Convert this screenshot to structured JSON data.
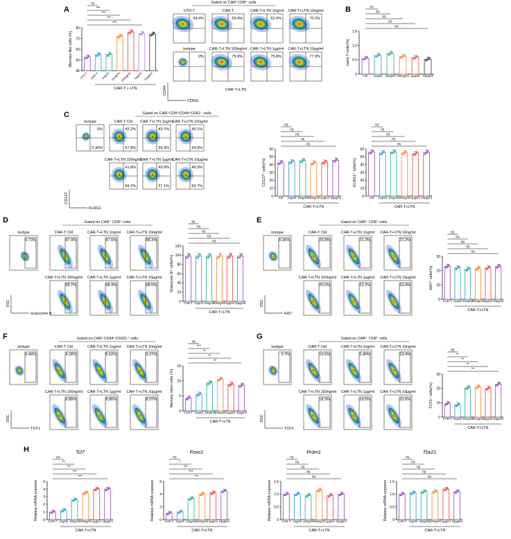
{
  "panels": {
    "A": {
      "label": "A",
      "gated": "Gated on CAR⁺CD8⁺ cells",
      "group_label": "CAR-T + LTN",
      "sample_group_label": "CAR-T+LTN",
      "axes": {
        "x": "CD62L",
        "y": "CD44"
      },
      "flow": [
        {
          "name": "UTD-T",
          "pct": "54.4%"
        },
        {
          "name": "CAR-T",
          "pct": "56.4%"
        },
        {
          "name": "CAR-T+LTN 1ng/ml",
          "pct": "62.9%"
        },
        {
          "name": "CAR-T+LTN 10ng/ml",
          "pct": "70.2%"
        },
        {
          "name": "Isotype",
          "pct": "0%"
        },
        {
          "name": "CAR-T+LTN 100ng/ml",
          "pct": "75.9%"
        },
        {
          "name": "CAR-T+LTN 1µg/ml",
          "pct": "75.8%"
        },
        {
          "name": "CAR-T+LTN 10µg/ml",
          "pct": "77.3%"
        }
      ],
      "chart_data": {
        "type": "bar",
        "ylabel": "Memory-like cells (%)",
        "ylim": [
          40,
          80
        ],
        "yticks": [
          "40",
          "50",
          "60",
          "70",
          "80"
        ],
        "categories": [
          "UTD-T",
          "CAR-T",
          "1ng/ml",
          "10ng/ml",
          "100ng/ml",
          "1µg/ml",
          "10µg/ml"
        ],
        "values": [
          52.5,
          54.8,
          55.0,
          72.0,
          76.0,
          74.5,
          74.0
        ],
        "colors": [
          "#9b59b6",
          "#3aa0d8",
          "#2bb39c",
          "#f08c3c",
          "#e8524a",
          "#c38ad8",
          "#444444"
        ],
        "sig": [
          "ns",
          "***",
          "***",
          "***",
          "***"
        ]
      }
    },
    "B": {
      "label": "B",
      "group_label": "",
      "chart_data": {
        "type": "bar",
        "ylabel": "naive T cells(%)",
        "ylim": [
          0,
          1.5
        ],
        "yticks": [
          "0",
          "0.5",
          "1.0",
          "1.5"
        ],
        "categories": [
          "Ctrl",
          "1ng/ml",
          "10ng/ml",
          "100ng/ml",
          "1µg/ml",
          "10µg/ml"
        ],
        "values": [
          0.55,
          0.65,
          0.72,
          0.62,
          0.58,
          0.52
        ],
        "colors": [
          "#9b59b6",
          "#3aa0d8",
          "#2bb39c",
          "#f08c3c",
          "#e8524a",
          "#444444"
        ],
        "sig": [
          "ns",
          "ns",
          "ns",
          "ns",
          "ns"
        ]
      }
    },
    "C": {
      "label": "C",
      "gated": "Gated on CAR⁺CD8⁺CD44⁺CD62⁻ cells",
      "axes": {
        "x": "KLRG1",
        "y": "CD127"
      },
      "flow": [
        {
          "name": "Isotype",
          "pct_tr": "0%",
          "pct_br": "0.30%"
        },
        {
          "name": "CAR-T Ctrl",
          "pct_tr": "42.2%",
          "pct_br": "57.8%"
        },
        {
          "name": "CAR-T+LTN 1ng/ml",
          "pct_tr": "43.7%",
          "pct_br": "56.3%"
        },
        {
          "name": "CAR-T+LTN 10ng/ml",
          "pct_tr": "45.1%",
          "pct_br": "54.9%"
        },
        {
          "name": "CAR-T+LTN 100ng/ml",
          "pct_tr": "41.8%",
          "pct_br": "58.2%"
        },
        {
          "name": "CAR-T+LTN 1µg/ml",
          "pct_tr": "42.9%",
          "pct_br": "57.1%"
        },
        {
          "name": "CAR-T+LTN 10µg/ml",
          "pct_tr": "49.3%",
          "pct_br": "50.7%"
        }
      ],
      "chart_data": [
        {
          "type": "bar",
          "ylabel": "CD127⁺ cells(%)",
          "ylim": [
            0,
            60
          ],
          "yticks": [
            "0",
            "10",
            "20",
            "30",
            "40",
            "50",
            "60"
          ],
          "categories": [
            "Ctrl",
            "1ng/ml",
            "10ng/ml",
            "100ng/ml",
            "1µg/ml",
            "10µg/ml"
          ],
          "values": [
            42.5,
            43.5,
            45.0,
            42.0,
            43.0,
            45.5
          ],
          "colors": [
            "#9b59b6",
            "#3aa0d8",
            "#2bb39c",
            "#f08c3c",
            "#e8524a",
            "#9b59b6"
          ],
          "sig": [
            "ns",
            "ns",
            "ns",
            "ns",
            "ns"
          ],
          "group_label": "CAR-T+LTN"
        },
        {
          "type": "bar",
          "ylabel": "KLRG1⁺ cells(%)",
          "ylim": [
            0,
            60
          ],
          "yticks": [
            "0",
            "10",
            "20",
            "30",
            "40",
            "50",
            "60"
          ],
          "categories": [
            "Ctrl",
            "1ng/ml",
            "10ng/ml",
            "100ng/ml",
            "1µg/ml",
            "10µg/ml"
          ],
          "values": [
            56.0,
            55.0,
            56.0,
            55.0,
            54.0,
            55.5
          ],
          "colors": [
            "#9b59b6",
            "#3aa0d8",
            "#2bb39c",
            "#f08c3c",
            "#e8524a",
            "#9b59b6"
          ],
          "sig": [
            "ns",
            "ns",
            "ns",
            "ns",
            "ns"
          ],
          "group_label": "CAR-T+LTN"
        }
      ]
    },
    "D": {
      "label": "D",
      "gated": "Gated on CAR⁺ CD8⁺ cells",
      "axes": {
        "x": "Granzyme B",
        "y": "SSC"
      },
      "flow": [
        {
          "name": "Isotype",
          "pct": "0.73%"
        },
        {
          "name": "CAR-T Ctrl",
          "pct": "97.4%"
        },
        {
          "name": "CAR-T+LTN 1ng/ml",
          "pct": "97.6%"
        },
        {
          "name": "CAR-T+LTN 10ng/ml",
          "pct": "98.3%"
        },
        {
          "name": "CAR-T+LTN 100ng/ml",
          "pct": "98.7%"
        },
        {
          "name": "CAR-T+LTN 1µg/ml",
          "pct": "98.4%"
        },
        {
          "name": "CAR-T+LTN 10µg/ml",
          "pct": "98.5%"
        }
      ],
      "chart_data": {
        "type": "bar",
        "ylabel": "Granzyme B⁺ cells(%)",
        "ylim": [
          0,
          120
        ],
        "yticks": [
          "0",
          "20",
          "40",
          "60",
          "80",
          "100",
          "120"
        ],
        "categories": [
          "CAR-T",
          "1ng/ml",
          "10ng/ml",
          "100ng/ml",
          "1µg/ml",
          "10µg/ml"
        ],
        "values": [
          98.0,
          98.0,
          98.0,
          98.0,
          98.0,
          98.0
        ],
        "colors": [
          "#9b59b6",
          "#3aa0d8",
          "#2bb39c",
          "#f08c3c",
          "#e8524a",
          "#9b59b6"
        ],
        "sig": [
          "ns",
          "ns",
          "ns",
          "ns",
          "ns"
        ],
        "group_label": "CAR-T+LTN"
      }
    },
    "E": {
      "label": "E",
      "gated": "Gated on CAR⁺ CD8⁺ cells",
      "axes": {
        "x": "Ki67",
        "y": "SSC"
      },
      "flow": [
        {
          "name": "Isotype",
          "pct": "0.36%"
        },
        {
          "name": "CAR-T Ctrl",
          "pct": "25.8%"
        },
        {
          "name": "CAR-T+LTN 1ng/ml",
          "pct": "21.3%"
        },
        {
          "name": "CAR-T+LTN 10ng/ml",
          "pct": "21.2%"
        },
        {
          "name": "CAR-T+LTN 100ng/ml",
          "pct": "20.0%"
        },
        {
          "name": "CAR-T+LTN 1µg/ml",
          "pct": "22.2%"
        },
        {
          "name": "CAR-T+LTN 10µg/ml",
          "pct": "23.4%"
        }
      ],
      "chart_data": {
        "type": "bar",
        "ylabel": "Ki67⁺ cells(%)",
        "ylim": [
          0,
          30
        ],
        "yticks": [
          "0",
          "10",
          "20",
          "30"
        ],
        "categories": [
          "CAR-T",
          "1ng/ml",
          "10ng/ml",
          "100ng/ml",
          "1µg/ml",
          "10µg/ml"
        ],
        "values": [
          23.0,
          22.0,
          21.0,
          21.5,
          22.0,
          23.0
        ],
        "colors": [
          "#9b59b6",
          "#3aa0d8",
          "#2bb39c",
          "#f08c3c",
          "#e8524a",
          "#9b59b6"
        ],
        "sig": [
          "ns",
          "ns",
          "ns",
          "ns",
          "ns"
        ],
        "group_label": "CAR-T+LTN"
      }
    },
    "F": {
      "label": "F",
      "gated": "Gated on CAR⁺CD44⁺CD62L⁺ cells",
      "axes": {
        "x": "TCF1",
        "y": "SSC"
      },
      "flow": [
        {
          "name": "Isotype",
          "pct": "0.44%"
        },
        {
          "name": "CAR-T Ctrl",
          "pct": "4.28%"
        },
        {
          "name": "CAR-T+LTN 1ng/ml",
          "pct": "5.62%"
        },
        {
          "name": "CAR-T+LTN 10ng/ml",
          "pct": "9.27%"
        },
        {
          "name": "CAR-T+LTN 100ng/ml",
          "pct": "9.88%"
        },
        {
          "name": "CAR-T+LTN 1µg/ml",
          "pct": "8.86%"
        },
        {
          "name": "CAR-T+LTN 10µg/ml",
          "pct": "8.07%"
        }
      ],
      "chart_data": {
        "type": "bar",
        "ylabel": "Memory stem cells (%)",
        "ylim": [
          0,
          15
        ],
        "yticks": [
          "0",
          "5",
          "10",
          "15"
        ],
        "categories": [
          "CAR-T",
          "1ng/ml",
          "10ng/ml",
          "100ng/ml",
          "1µg/ml",
          "10µg/ml"
        ],
        "values": [
          4.2,
          5.5,
          9.3,
          10.5,
          8.8,
          8.5
        ],
        "colors": [
          "#9b59b6",
          "#3aa0d8",
          "#2bb39c",
          "#f08c3c",
          "#e8524a",
          "#9b59b6"
        ],
        "sig": [
          "ns",
          "***",
          "**",
          "**",
          "**"
        ],
        "group_label": "CAR-T+LTN"
      }
    },
    "G": {
      "label": "G",
      "gated": "Gated on CAR⁺ CD8⁺ cells",
      "axes": {
        "x": "TCF1",
        "y": "SSC"
      },
      "flow": [
        {
          "name": "Isotype",
          "pct": "0.7%"
        },
        {
          "name": "CAR-T Ctrl",
          "pct": "10.6%"
        },
        {
          "name": "CAR-T+LTN 1ng/ml",
          "pct": "6.40%"
        },
        {
          "name": "CAR-T+LTN 10ng/ml",
          "pct": "23.4%"
        },
        {
          "name": "CAR-T+LTN 100ng/ml",
          "pct": "18.3%"
        },
        {
          "name": "CAR-T+LTN 1µg/ml",
          "pct": "19.5%"
        },
        {
          "name": "CAR-T+LTN 10µg/ml",
          "pct": "23.6%"
        }
      ],
      "chart_data": {
        "type": "bar",
        "ylabel": "TCF1⁺ cells(%)",
        "ylim": [
          0,
          30
        ],
        "yticks": [
          "0",
          "10",
          "20",
          "30"
        ],
        "categories": [
          "CAR-T",
          "1ng/ml",
          "10ng/ml",
          "100ng/ml",
          "1µg/ml",
          "10µg/ml"
        ],
        "values": [
          9.5,
          8.5,
          20.5,
          21.0,
          20.0,
          23.0
        ],
        "colors": [
          "#9b59b6",
          "#3aa0d8",
          "#2bb39c",
          "#f08c3c",
          "#e8524a",
          "#9b59b6"
        ],
        "sig": [
          "ns",
          "**",
          "**",
          "**",
          "**"
        ],
        "group_label": "CAR-T+LTN"
      }
    },
    "H": {
      "label": "H",
      "chart_data": [
        {
          "type": "bar",
          "title": "Tcf7",
          "ylabel": "Relative mRNA expressi",
          "ylim": [
            0,
            5
          ],
          "yticks": [
            "0",
            "1",
            "2",
            "3",
            "4",
            "5"
          ],
          "categories": [
            "CAR-T",
            "1ng/ml",
            "10ng/ml",
            "100ng/ml",
            "1µg/ml",
            "10µg/ml"
          ],
          "values": [
            1.0,
            1.2,
            2.6,
            3.5,
            4.0,
            4.0
          ],
          "colors": [
            "#9b59b6",
            "#3aa0d8",
            "#2bb39c",
            "#f08c3c",
            "#e8524a",
            "#9b59b6"
          ],
          "sig": [
            "ns",
            "**",
            "***",
            "***",
            "***"
          ],
          "group_label": "CAR-T+LTN"
        },
        {
          "type": "bar",
          "title": "Foxo1",
          "ylabel": "Relative mRNA expressi",
          "ylim": [
            0,
            6
          ],
          "yticks": [
            "0",
            "2",
            "4",
            "6"
          ],
          "categories": [
            "CAR-T",
            "1ng/ml",
            "10ng/ml",
            "100ng/ml",
            "1µg/ml",
            "10µg/ml"
          ],
          "values": [
            1.0,
            1.2,
            3.3,
            4.0,
            4.2,
            4.5
          ],
          "colors": [
            "#9b59b6",
            "#3aa0d8",
            "#2bb39c",
            "#f08c3c",
            "#e8524a",
            "#9b59b6"
          ],
          "sig": [
            "ns",
            "*",
            "***",
            "***",
            "***"
          ],
          "group_label": "CAR-T+LTN"
        },
        {
          "type": "bar",
          "title": "Prdm1",
          "ylabel": "Relative mRNA expressi",
          "ylim": [
            0,
            1.5
          ],
          "yticks": [
            "0",
            "0.5",
            "1.0",
            "1.5"
          ],
          "categories": [
            "CAR-T",
            "1ng/ml",
            "10ng/ml",
            "100ng/ml",
            "1µg/ml",
            "10µg/ml"
          ],
          "values": [
            1.0,
            1.0,
            0.95,
            1.15,
            0.95,
            1.0
          ],
          "colors": [
            "#9b59b6",
            "#3aa0d8",
            "#2bb39c",
            "#f08c3c",
            "#e8524a",
            "#9b59b6"
          ],
          "sig": [
            "ns",
            "ns",
            "ns",
            "ns",
            "ns"
          ],
          "group_label": "CAR-T+LTN"
        },
        {
          "type": "bar",
          "title": "Tbx21",
          "ylabel": "Relative mRNA expressi",
          "ylim": [
            0,
            1.5
          ],
          "yticks": [
            "0",
            "0.5",
            "1.0",
            "1.5"
          ],
          "categories": [
            "CAR-T",
            "1ng/ml",
            "10ng/ml",
            "100ng/ml",
            "1µg/ml",
            "10µg/ml"
          ],
          "values": [
            1.0,
            1.05,
            1.1,
            1.1,
            1.2,
            1.1
          ],
          "colors": [
            "#9b59b6",
            "#3aa0d8",
            "#2bb39c",
            "#f08c3c",
            "#e8524a",
            "#9b59b6"
          ],
          "sig": [
            "ns",
            "ns",
            "ns",
            "ns",
            "ns"
          ],
          "group_label": "CAR-T+LTN"
        }
      ]
    }
  }
}
